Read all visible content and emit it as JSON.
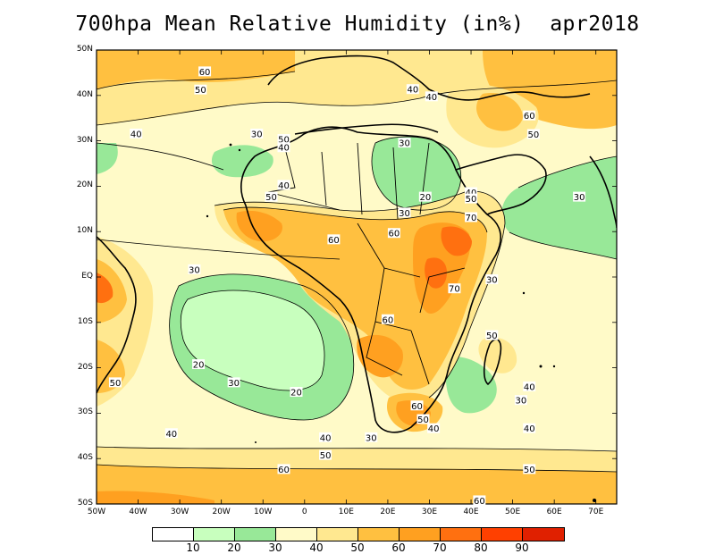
{
  "title": "700hpa Mean Relative Humidity (in%)  apr2018",
  "map": {
    "projection": "lat-lon",
    "lon_range": [
      -50,
      75
    ],
    "lat_range": [
      -50,
      50
    ],
    "y_tick_labels": [
      "50N",
      "40N",
      "30N",
      "20N",
      "10N",
      "EQ",
      "10S",
      "20S",
      "30S",
      "40S",
      "50S"
    ],
    "x_tick_labels": [
      "50W",
      "40W",
      "30W",
      "20W",
      "10W",
      "0",
      "10E",
      "20E",
      "30E",
      "40E",
      "50E",
      "60E",
      "70E"
    ]
  },
  "contour_labels": [
    {
      "text": "60",
      "lon": -24,
      "lat": 45.2
    },
    {
      "text": "50",
      "lon": -25,
      "lat": 41.2
    },
    {
      "text": "40",
      "lon": -40.5,
      "lat": 31.5
    },
    {
      "text": "30",
      "lon": -11.5,
      "lat": 31.5
    },
    {
      "text": "50",
      "lon": -5,
      "lat": 30.3
    },
    {
      "text": "40",
      "lon": -5,
      "lat": 28.5
    },
    {
      "text": "40",
      "lon": -5,
      "lat": 20.2
    },
    {
      "text": "50",
      "lon": -8,
      "lat": 17.6
    },
    {
      "text": "40",
      "lon": 26,
      "lat": 41.3
    },
    {
      "text": "40",
      "lon": 30.5,
      "lat": 39.7
    },
    {
      "text": "60",
      "lon": 54,
      "lat": 35.5
    },
    {
      "text": "50",
      "lon": 55,
      "lat": 31.4
    },
    {
      "text": "30",
      "lon": 24,
      "lat": 29.5
    },
    {
      "text": "20",
      "lon": 29,
      "lat": 17.6
    },
    {
      "text": "40",
      "lon": 40,
      "lat": 18.6
    },
    {
      "text": "50",
      "lon": 40,
      "lat": 17.2
    },
    {
      "text": "30",
      "lon": 24,
      "lat": 14.1
    },
    {
      "text": "70",
      "lon": 40,
      "lat": 13.1
    },
    {
      "text": "30",
      "lon": 66,
      "lat": 17.6
    },
    {
      "text": "60",
      "lon": 7,
      "lat": 8.2
    },
    {
      "text": "60",
      "lon": 21.5,
      "lat": 9.6
    },
    {
      "text": "30",
      "lon": -26.5,
      "lat": 1.6
    },
    {
      "text": "70",
      "lon": 36,
      "lat": -2.6
    },
    {
      "text": "30",
      "lon": 45,
      "lat": -0.6
    },
    {
      "text": "60",
      "lon": 20,
      "lat": -9.4
    },
    {
      "text": "50",
      "lon": 45,
      "lat": -12.9
    },
    {
      "text": "20",
      "lon": -25.5,
      "lat": -19.3
    },
    {
      "text": "50",
      "lon": -45.5,
      "lat": -23.3
    },
    {
      "text": "30",
      "lon": -17,
      "lat": -23.3
    },
    {
      "text": "20",
      "lon": -2,
      "lat": -25.4
    },
    {
      "text": "40",
      "lon": 54,
      "lat": -24.2
    },
    {
      "text": "30",
      "lon": 52,
      "lat": -27.2
    },
    {
      "text": "60",
      "lon": 27,
      "lat": -28.4
    },
    {
      "text": "50",
      "lon": 28.5,
      "lat": -31.4
    },
    {
      "text": "40",
      "lon": 31,
      "lat": -33.4
    },
    {
      "text": "30",
      "lon": 16,
      "lat": -35.4
    },
    {
      "text": "40",
      "lon": -32,
      "lat": -34.5
    },
    {
      "text": "40",
      "lon": 5,
      "lat": -35.4
    },
    {
      "text": "40",
      "lon": 54,
      "lat": -33.4
    },
    {
      "text": "50",
      "lon": 5,
      "lat": -39.3
    },
    {
      "text": "60",
      "lon": -5,
      "lat": -42.4
    },
    {
      "text": "50",
      "lon": 54,
      "lat": -42.4
    },
    {
      "text": "60",
      "lon": 42,
      "lat": -49.3
    }
  ],
  "colorbar": {
    "colors": [
      "#ffffff",
      "#c8ffbe",
      "#98e898",
      "#fffac8",
      "#ffe890",
      "#ffc040",
      "#ffa020",
      "#ff7010",
      "#ff4000",
      "#e02000"
    ],
    "labels": [
      "10",
      "20",
      "30",
      "40",
      "50",
      "60",
      "70",
      "80",
      "90"
    ]
  }
}
